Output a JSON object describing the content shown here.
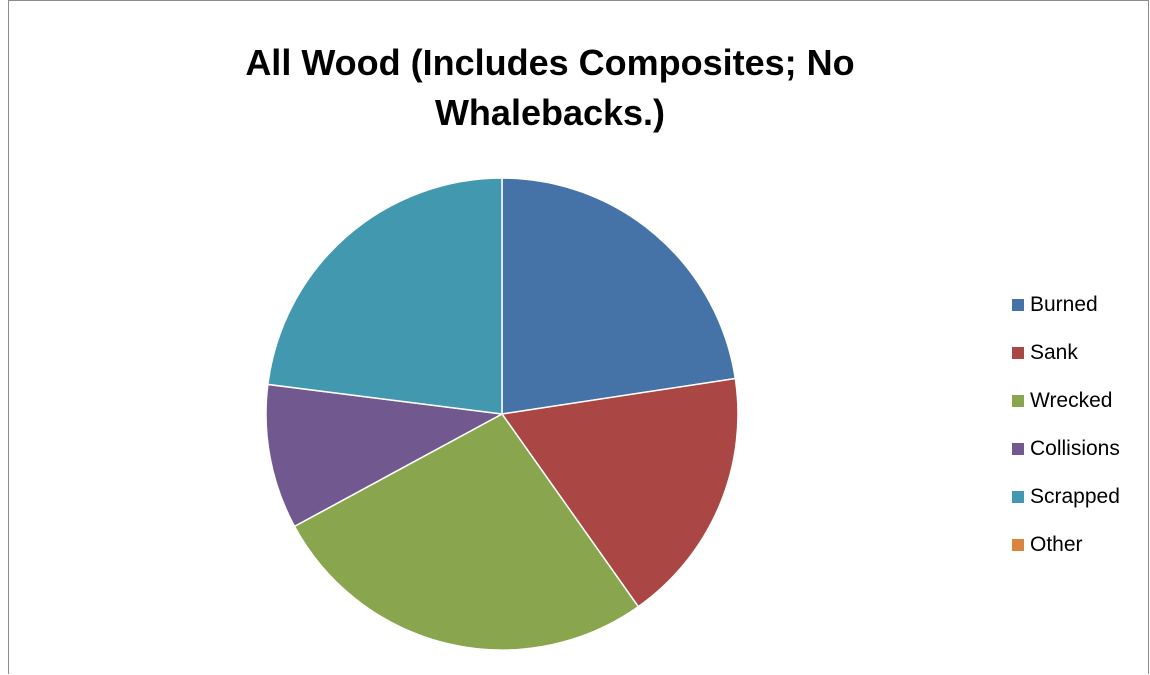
{
  "chart_data": {
    "type": "pie",
    "title": "All Wood (Includes Composites; No Whalebacks.)",
    "legend_position": "right",
    "slices": [
      {
        "label": "Burned",
        "value": 22.6,
        "color": "#4572a7"
      },
      {
        "label": "Sank",
        "value": 17.6,
        "color": "#aa4643"
      },
      {
        "label": "Wrecked",
        "value": 26.9,
        "color": "#89a54e"
      },
      {
        "label": "Collisions",
        "value": 9.9,
        "color": "#71588f"
      },
      {
        "label": "Scrapped",
        "value": 23.0,
        "color": "#4198af"
      },
      {
        "label": "Other",
        "value": 0,
        "color": "#db843d"
      }
    ]
  }
}
